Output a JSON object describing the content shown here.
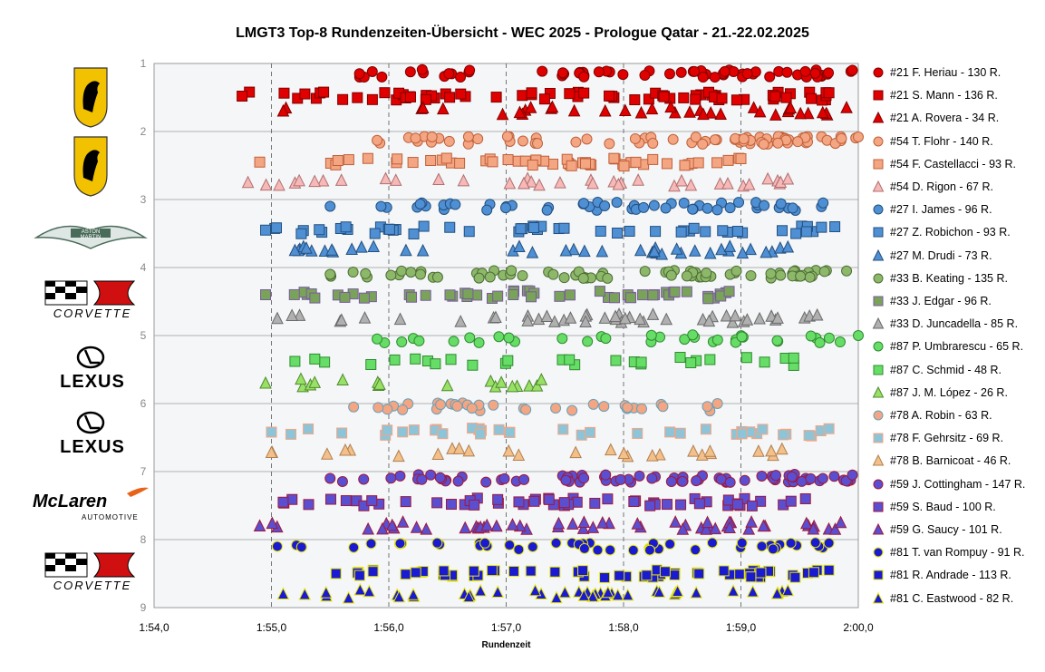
{
  "title": "LMGT3 Top-8 Rundenzeiten-Übersicht - WEC 2025 - Prologue Qatar - 21.-22.02.2025",
  "chart_data": {
    "type": "scatter",
    "title": "LMGT3 Top-8 Rundenzeiten-Übersicht - WEC 2025 - Prologue Qatar - 21.-22.02.2025",
    "xlabel": "Rundenzeit",
    "ylabel": "",
    "x_ticks": [
      "1:54,0",
      "1:55,0",
      "1:56,0",
      "1:57,0",
      "1:58,0",
      "1:59,0",
      "2:00,0"
    ],
    "xlim": [
      114.0,
      120.0
    ],
    "y_ticks": [
      "1",
      "2",
      "3",
      "4",
      "5",
      "6",
      "7",
      "8",
      "9"
    ],
    "ylim": [
      1,
      9
    ],
    "grid": "dashed vertical, solid horizontal",
    "legend_position": "right",
    "series": [
      {
        "name": "#21 F. Heriau - 130 R.",
        "marker": "circle",
        "color": "#e00000",
        "edge": "#800000",
        "y": 1.15,
        "x_min": 115.75,
        "x_max": 119.95,
        "count": 62
      },
      {
        "name": "#21 S. Mann - 136 R.",
        "marker": "square",
        "color": "#e00000",
        "edge": "#800000",
        "y": 1.48,
        "x_min": 114.75,
        "x_max": 119.75,
        "count": 70
      },
      {
        "name": "#21 A. Rovera - 34 R.",
        "marker": "triangle",
        "color": "#e00000",
        "edge": "#800000",
        "y": 1.7,
        "x_min": 115.1,
        "x_max": 119.9,
        "count": 34
      },
      {
        "name": "#54 T. Flohr - 140 R.",
        "marker": "circle",
        "color": "#f4a582",
        "edge": "#c0603a",
        "y": 2.13,
        "x_min": 115.9,
        "x_max": 120.0,
        "count": 72
      },
      {
        "name": "#54 F. Castellacci - 93 R.",
        "marker": "square",
        "color": "#f4a582",
        "edge": "#c0603a",
        "y": 2.45,
        "x_min": 114.9,
        "x_max": 119.0,
        "count": 48
      },
      {
        "name": "#54 D. Rigon - 67 R.",
        "marker": "triangle",
        "color": "#f7b8b8",
        "edge": "#b07070",
        "y": 2.75,
        "x_min": 114.8,
        "x_max": 119.4,
        "count": 35
      },
      {
        "name": "#27 I. James - 96 R.",
        "marker": "circle",
        "color": "#4f8fd4",
        "edge": "#23507f",
        "y": 3.1,
        "x_min": 115.5,
        "x_max": 119.7,
        "count": 50
      },
      {
        "name": "#27 Z. Robichon - 93 R.",
        "marker": "square",
        "color": "#4f8fd4",
        "edge": "#23507f",
        "y": 3.45,
        "x_min": 114.95,
        "x_max": 119.8,
        "count": 48
      },
      {
        "name": "#27 M. Drudi - 73 R.",
        "marker": "triangle",
        "color": "#4f8fd4",
        "edge": "#23507f",
        "y": 3.75,
        "x_min": 115.2,
        "x_max": 119.4,
        "count": 38
      },
      {
        "name": "#33 B. Keating - 135 R.",
        "marker": "circle",
        "color": "#8db86a",
        "edge": "#4e6e35",
        "y": 4.1,
        "x_min": 115.5,
        "x_max": 119.9,
        "count": 70
      },
      {
        "name": "#33 J. Edgar - 96 R.",
        "marker": "square",
        "color": "#7aa35a",
        "edge": "#7a5aa0",
        "y": 4.4,
        "x_min": 114.95,
        "x_max": 118.9,
        "count": 50
      },
      {
        "name": "#33 D. Juncadella - 85 R.",
        "marker": "triangle",
        "color": "#b0b0b0",
        "edge": "#6a6a6a",
        "y": 4.75,
        "x_min": 115.05,
        "x_max": 119.65,
        "count": 44
      },
      {
        "name": "#87 P. Umbrarescu - 65 R.",
        "marker": "circle",
        "color": "#66dd66",
        "edge": "#2f8a2f",
        "y": 5.05,
        "x_min": 115.9,
        "x_max": 120.0,
        "count": 34
      },
      {
        "name": "#87 C. Schmid - 48 R.",
        "marker": "square",
        "color": "#66dd66",
        "edge": "#2f8a2f",
        "y": 5.38,
        "x_min": 115.2,
        "x_max": 119.45,
        "count": 26
      },
      {
        "name": "#87 J. M. López - 26 R.",
        "marker": "triangle",
        "color": "#99e066",
        "edge": "#4f8a2f",
        "y": 5.7,
        "x_min": 114.95,
        "x_max": 117.3,
        "count": 16
      },
      {
        "name": "#78 A. Robin - 63 R.",
        "marker": "circle",
        "color": "#f4a582",
        "edge": "#6aa0b8",
        "y": 6.05,
        "x_min": 115.7,
        "x_max": 118.8,
        "count": 33
      },
      {
        "name": "#78 F. Gehrsitz - 69 R.",
        "marker": "square",
        "color": "#8ec4d8",
        "edge": "#f4a582",
        "y": 6.42,
        "x_min": 115.0,
        "x_max": 119.75,
        "count": 36
      },
      {
        "name": "#78 B. Barnicoat - 46 R.",
        "marker": "triangle",
        "color": "#f4c08a",
        "edge": "#b08050",
        "y": 6.72,
        "x_min": 115.0,
        "x_max": 119.35,
        "count": 24
      },
      {
        "name": "#59 J. Cottingham - 147 R.",
        "marker": "circle",
        "color": "#5a4fd0",
        "edge": "#a0183a",
        "y": 7.1,
        "x_min": 115.5,
        "x_max": 119.95,
        "count": 75
      },
      {
        "name": "#59 S. Baud - 100 R.",
        "marker": "square",
        "color": "#5a4fd0",
        "edge": "#a0183a",
        "y": 7.45,
        "x_min": 115.1,
        "x_max": 119.55,
        "count": 52
      },
      {
        "name": "#59 G. Saucy - 101 R.",
        "marker": "triangle",
        "color": "#5a4fd0",
        "edge": "#a0183a",
        "y": 7.8,
        "x_min": 114.9,
        "x_max": 119.85,
        "count": 52
      },
      {
        "name": "#81 T. van Rompuy - 91 R.",
        "marker": "circle",
        "color": "#1a1ad0",
        "edge": "#e6e600",
        "y": 8.1,
        "x_min": 115.05,
        "x_max": 119.75,
        "count": 46
      },
      {
        "name": "#81 R. Andrade - 113 R.",
        "marker": "square",
        "color": "#1a1ad0",
        "edge": "#e6e600",
        "y": 8.5,
        "x_min": 115.55,
        "x_max": 119.75,
        "count": 58
      },
      {
        "name": "#81 C. Eastwood - 82 R.",
        "marker": "triangle",
        "color": "#1a1ad0",
        "edge": "#e6e600",
        "y": 8.8,
        "x_min": 115.1,
        "x_max": 119.4,
        "count": 42
      }
    ]
  },
  "logos": [
    {
      "name": "Ferrari",
      "icon": "ferrari-icon",
      "text": "",
      "color": "#f2c200"
    },
    {
      "name": "Ferrari",
      "icon": "ferrari-icon",
      "text": "",
      "color": "#f2c200"
    },
    {
      "name": "Aston Martin",
      "icon": "aston-martin-icon",
      "text": "ASTON MARTIN",
      "color": "#4a6b5a"
    },
    {
      "name": "Corvette",
      "icon": "corvette-icon",
      "text": "CORVETTE",
      "color": "#000000"
    },
    {
      "name": "Lexus",
      "icon": "lexus-icon",
      "text": "LEXUS",
      "color": "#000000"
    },
    {
      "name": "Lexus",
      "icon": "lexus-icon",
      "text": "LEXUS",
      "color": "#000000"
    },
    {
      "name": "McLaren",
      "icon": "mclaren-icon",
      "text": "McLaren",
      "color": "#000000",
      "subtext": "AUTOMOTIVE"
    },
    {
      "name": "Corvette",
      "icon": "corvette-icon",
      "text": "CORVETTE",
      "color": "#000000"
    }
  ]
}
